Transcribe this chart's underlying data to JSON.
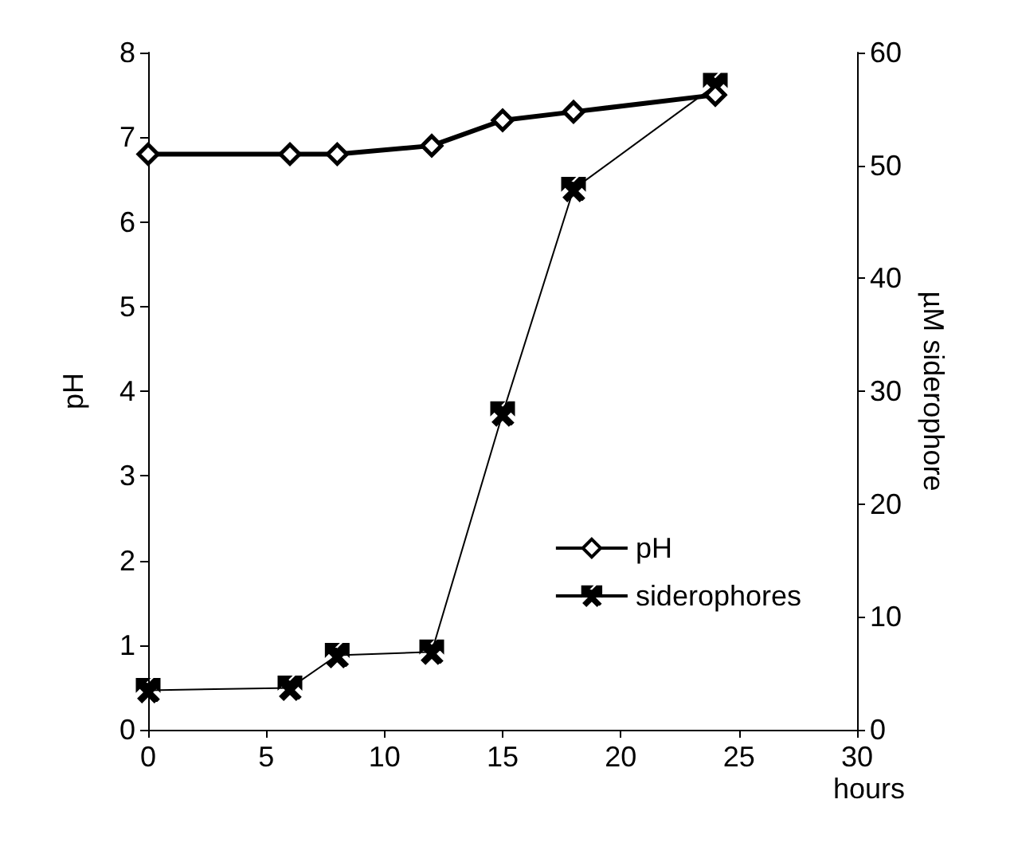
{
  "chart_data": {
    "type": "line",
    "xlabel": "hours",
    "ylabel": "pH",
    "y2label": "µM siderophore",
    "x": [
      0,
      6,
      8,
      12,
      15,
      18,
      24
    ],
    "series": [
      {
        "name": "pH",
        "color": "#000000",
        "values": [
          6.8,
          6.8,
          6.8,
          6.9,
          7.2,
          7.3,
          7.5
        ],
        "marker": "diamond"
      },
      {
        "name": "siderophores",
        "color": "#000000",
        "values": [
          3.5,
          3.7,
          6.6,
          6.9,
          28.0,
          47.9,
          57.1
        ],
        "marker": "cross",
        "axis": "y2"
      }
    ],
    "xlim": [
      0,
      30
    ],
    "xticks": [
      0,
      5,
      10,
      15,
      20,
      25,
      30
    ],
    "ylim": [
      0,
      8
    ],
    "yticks": [
      0,
      1,
      2,
      3,
      4,
      5,
      6,
      7,
      8
    ],
    "y2lim": [
      0,
      60
    ],
    "y2ticks": [
      0,
      10,
      20,
      30,
      40,
      50,
      60
    ],
    "grid": false,
    "legend": "bottom right",
    "line_style": "solid"
  }
}
